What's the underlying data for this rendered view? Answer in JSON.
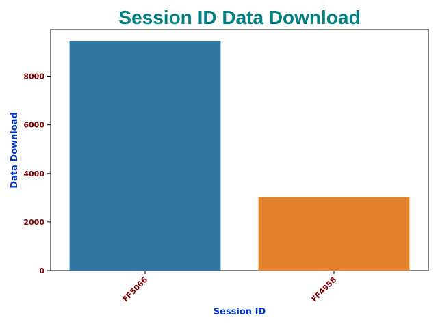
{
  "chart_data": {
    "type": "bar",
    "title": "Session ID Data Download",
    "xlabel": "Session ID",
    "ylabel": "Data Download",
    "categories": [
      "FF5066",
      "FF4958"
    ],
    "values": [
      9450,
      3030
    ],
    "ylim": [
      0,
      9450
    ],
    "yticks": [
      0,
      2000,
      4000,
      6000,
      8000
    ],
    "bar_colors": [
      "#3274a1",
      "#e1812c"
    ],
    "title_color": "#008080",
    "axis_label_color": "#0033cc",
    "tick_label_color": "#800000",
    "grid": false,
    "legend": "none"
  }
}
